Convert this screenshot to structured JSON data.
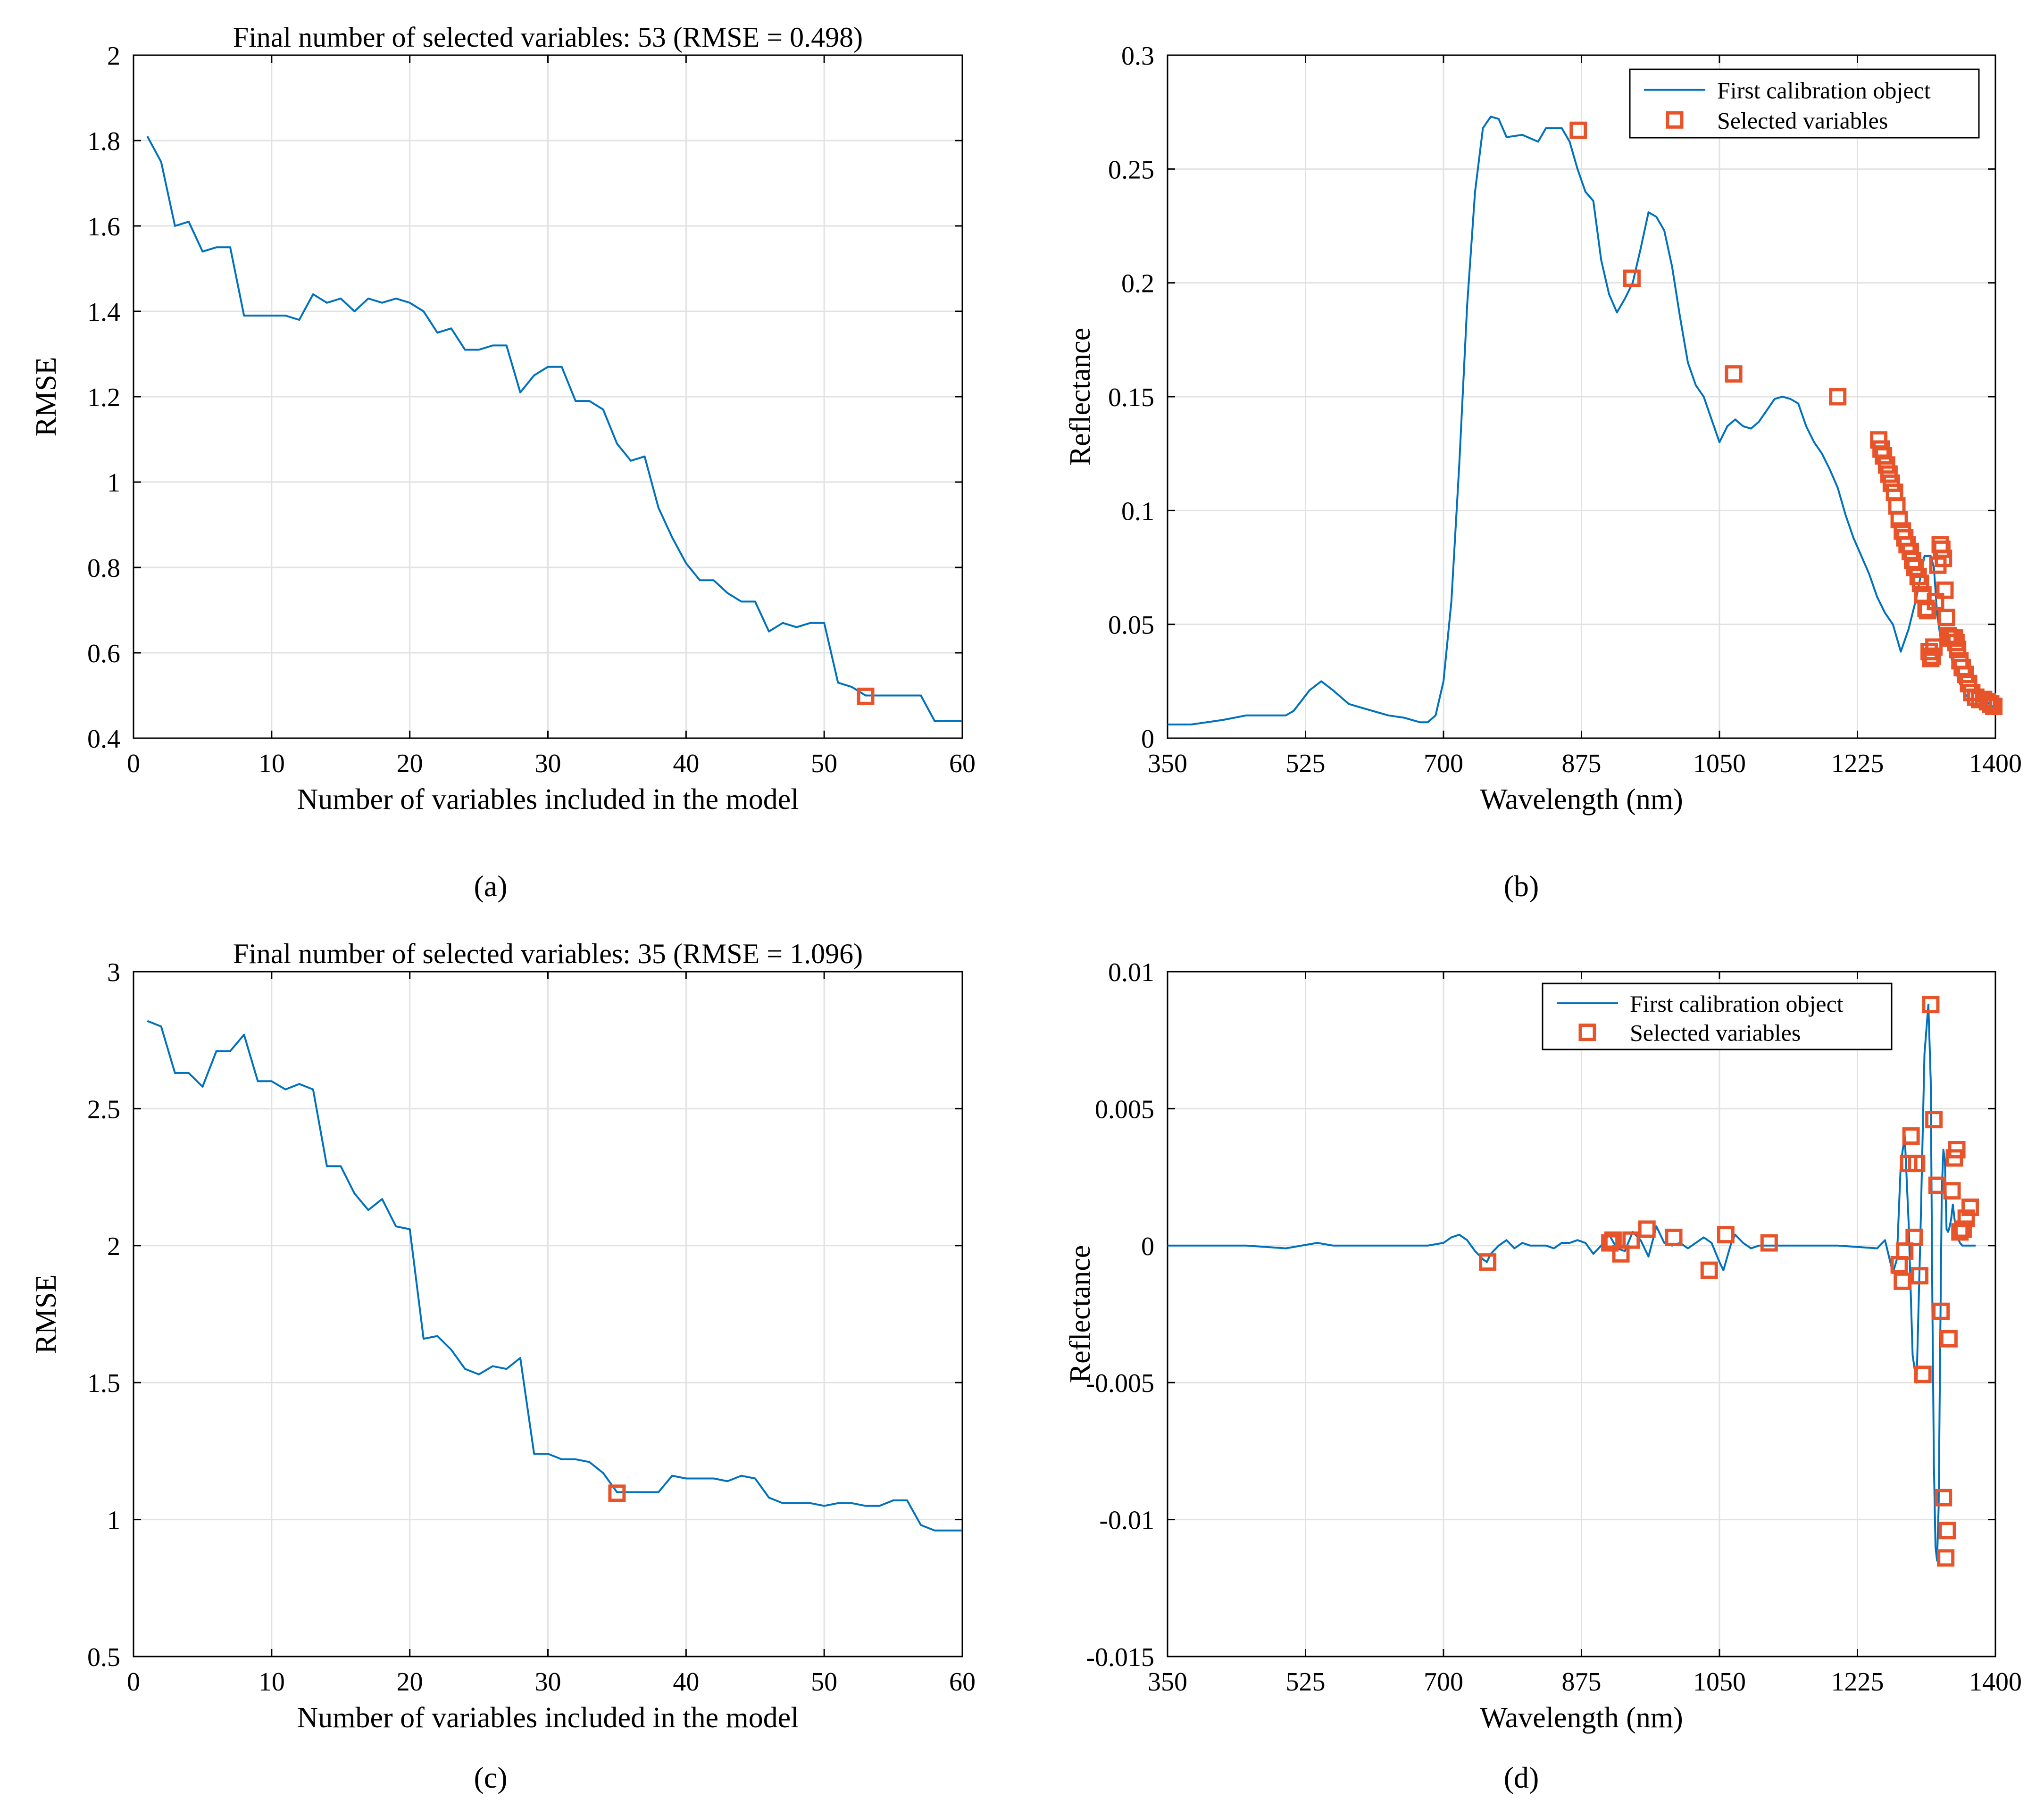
{
  "figure": {
    "panel_labels": [
      "(a)",
      "(b)",
      "(c)",
      "(d)"
    ]
  },
  "colors": {
    "line": "#0072BD",
    "marker": "#E8542A",
    "grid": "#e2e2e2",
    "axis": "#000000"
  },
  "chart_data": [
    {
      "id": "a",
      "type": "line",
      "title": "Final number of selected variables: 53  (RMSE = 0.498)",
      "xlabel": "Number of variables included in the model",
      "ylabel": "RMSE",
      "xlim": [
        0,
        60
      ],
      "ylim": [
        0.4,
        2
      ],
      "xticks": [
        0,
        10,
        20,
        30,
        40,
        50,
        60
      ],
      "xtick_labels": [
        "0",
        "10",
        "20",
        "30",
        "40",
        "50",
        "60"
      ],
      "yticks": [
        0.4,
        0.6,
        0.8,
        1,
        1.2,
        1.4,
        1.6,
        1.8,
        2
      ],
      "ytick_labels": [
        "0.4",
        "0.6",
        "0.8",
        "1",
        "1.2",
        "1.4",
        "1.6",
        "1.8",
        "2"
      ],
      "grid": true,
      "series": [
        {
          "name": "RMSE",
          "x": [
            1,
            2,
            3,
            4,
            5,
            6,
            7,
            8,
            9,
            10,
            11,
            12,
            13,
            14,
            15,
            16,
            17,
            18,
            19,
            20,
            21,
            22,
            23,
            24,
            25,
            26,
            27,
            28,
            29,
            30,
            31,
            32,
            33,
            34,
            35,
            36,
            37,
            38,
            39,
            40,
            41,
            42,
            43,
            44,
            45,
            46,
            47,
            48,
            49,
            50,
            51,
            52,
            53,
            54,
            55,
            56,
            57,
            58,
            59,
            60
          ],
          "y": [
            1.81,
            1.75,
            1.6,
            1.61,
            1.54,
            1.55,
            1.55,
            1.39,
            1.39,
            1.39,
            1.39,
            1.38,
            1.44,
            1.42,
            1.43,
            1.4,
            1.43,
            1.42,
            1.43,
            1.42,
            1.4,
            1.35,
            1.36,
            1.31,
            1.31,
            1.32,
            1.32,
            1.21,
            1.25,
            1.27,
            1.27,
            1.19,
            1.19,
            1.17,
            1.09,
            1.05,
            1.06,
            0.94,
            0.87,
            0.81,
            0.77,
            0.77,
            0.74,
            0.72,
            0.72,
            0.65,
            0.67,
            0.66,
            0.67,
            0.67,
            0.53,
            0.52,
            0.5,
            0.5,
            0.5,
            0.5,
            0.5,
            0.44,
            0.44,
            0.44
          ]
        }
      ],
      "markers": {
        "x": [
          53
        ],
        "y": [
          0.498
        ]
      }
    },
    {
      "id": "b",
      "type": "line",
      "title": "",
      "xlabel": "Wavelength (nm)",
      "ylabel": "Reflectance",
      "xlim": [
        350,
        1400
      ],
      "ylim": [
        0,
        0.3
      ],
      "xticks": [
        350,
        525,
        700,
        875,
        1050,
        1225,
        1400
      ],
      "xtick_labels": [
        "350",
        "525",
        "700",
        "875",
        "1050",
        "1225",
        "1400"
      ],
      "yticks": [
        0,
        0.05,
        0.1,
        0.15,
        0.2,
        0.25,
        0.3
      ],
      "ytick_labels": [
        "0",
        "0.05",
        "0.1",
        "0.15",
        "0.2",
        "0.25",
        "0.3"
      ],
      "grid": true,
      "legend": {
        "position": "top-right",
        "entries": [
          "First calibration object",
          "Selected variables"
        ]
      },
      "series": [
        {
          "name": "First calibration object",
          "x": [
            350,
            380,
            420,
            450,
            480,
            500,
            510,
            530,
            545,
            560,
            580,
            600,
            630,
            650,
            670,
            680,
            690,
            700,
            710,
            720,
            730,
            740,
            750,
            760,
            770,
            780,
            800,
            820,
            830,
            840,
            850,
            860,
            870,
            880,
            890,
            900,
            910,
            920,
            930,
            940,
            950,
            960,
            970,
            980,
            990,
            1000,
            1010,
            1020,
            1030,
            1040,
            1050,
            1060,
            1070,
            1080,
            1090,
            1100,
            1110,
            1120,
            1130,
            1140,
            1150,
            1160,
            1170,
            1180,
            1190,
            1200,
            1210,
            1220,
            1230,
            1240,
            1250,
            1260,
            1270,
            1280,
            1290,
            1300,
            1310,
            1318,
            1322,
            1326,
            1330,
            1334,
            1338,
            1342,
            1346,
            1350,
            1355,
            1360,
            1365,
            1370,
            1375,
            1380,
            1385,
            1390,
            1395,
            1398
          ],
          "y": [
            0.006,
            0.006,
            0.008,
            0.01,
            0.01,
            0.01,
            0.012,
            0.021,
            0.025,
            0.021,
            0.015,
            0.013,
            0.01,
            0.009,
            0.007,
            0.007,
            0.01,
            0.025,
            0.06,
            0.12,
            0.19,
            0.24,
            0.268,
            0.273,
            0.272,
            0.264,
            0.265,
            0.262,
            0.268,
            0.268,
            0.268,
            0.262,
            0.25,
            0.24,
            0.236,
            0.21,
            0.195,
            0.187,
            0.193,
            0.2,
            0.215,
            0.231,
            0.229,
            0.223,
            0.207,
            0.185,
            0.165,
            0.155,
            0.15,
            0.14,
            0.13,
            0.137,
            0.14,
            0.137,
            0.136,
            0.139,
            0.144,
            0.149,
            0.15,
            0.149,
            0.147,
            0.137,
            0.13,
            0.125,
            0.118,
            0.11,
            0.098,
            0.088,
            0.08,
            0.072,
            0.062,
            0.055,
            0.05,
            0.038,
            0.048,
            0.062,
            0.08,
            0.08,
            0.075,
            0.055,
            0.045,
            0.044,
            0.043,
            0.038,
            0.033,
            0.029,
            0.024,
            0.02,
            0.018,
            0.017,
            0.017,
            0.016,
            0.016,
            0.016,
            0.014,
            0.014
          ]
        }
      ],
      "markers": {
        "x": [
          871,
          939,
          1068,
          1200,
          1252,
          1255,
          1258,
          1262,
          1265,
          1268,
          1272,
          1275,
          1278,
          1282,
          1285,
          1288,
          1292,
          1295,
          1298,
          1302,
          1305,
          1308,
          1312,
          1314,
          1316,
          1318,
          1320,
          1322,
          1324,
          1327,
          1330,
          1332,
          1334,
          1336,
          1338,
          1340,
          1342,
          1345,
          1348,
          1350,
          1352,
          1355,
          1358,
          1362,
          1366,
          1370,
          1375,
          1380,
          1385,
          1390,
          1394,
          1398
        ],
        "y": [
          0.267,
          0.202,
          0.16,
          0.15,
          0.131,
          0.127,
          0.124,
          0.12,
          0.116,
          0.112,
          0.108,
          0.102,
          0.096,
          0.091,
          0.088,
          0.085,
          0.082,
          0.078,
          0.075,
          0.071,
          0.068,
          0.063,
          0.057,
          0.056,
          0.038,
          0.035,
          0.036,
          0.04,
          0.06,
          0.076,
          0.085,
          0.083,
          0.079,
          0.065,
          0.053,
          0.045,
          0.044,
          0.044,
          0.044,
          0.042,
          0.039,
          0.034,
          0.031,
          0.028,
          0.024,
          0.02,
          0.018,
          0.017,
          0.017,
          0.016,
          0.015,
          0.014
        ]
      }
    },
    {
      "id": "c",
      "type": "line",
      "title": "Final number of selected variables: 35  (RMSE = 1.096)",
      "xlabel": "Number of variables included in the model",
      "ylabel": "RMSE",
      "xlim": [
        0,
        60
      ],
      "ylim": [
        0.5,
        3
      ],
      "xticks": [
        0,
        10,
        20,
        30,
        40,
        50,
        60
      ],
      "xtick_labels": [
        "0",
        "10",
        "20",
        "30",
        "40",
        "50",
        "60"
      ],
      "yticks": [
        0.5,
        1,
        1.5,
        2,
        2.5,
        3
      ],
      "ytick_labels": [
        "0.5",
        "1",
        "1.5",
        "2",
        "2.5",
        "3"
      ],
      "grid": true,
      "series": [
        {
          "name": "RMSE",
          "x": [
            1,
            2,
            3,
            4,
            5,
            6,
            7,
            8,
            9,
            10,
            11,
            12,
            13,
            14,
            15,
            16,
            17,
            18,
            19,
            20,
            21,
            22,
            23,
            24,
            25,
            26,
            27,
            28,
            29,
            30,
            31,
            32,
            33,
            34,
            35,
            36,
            37,
            38,
            39,
            40,
            41,
            42,
            43,
            44,
            45,
            46,
            47,
            48,
            49,
            50,
            51,
            52,
            53,
            54,
            55,
            56,
            57,
            58,
            59,
            60
          ],
          "y": [
            2.82,
            2.8,
            2.63,
            2.63,
            2.58,
            2.71,
            2.71,
            2.77,
            2.6,
            2.6,
            2.57,
            2.59,
            2.57,
            2.29,
            2.29,
            2.19,
            2.13,
            2.17,
            2.07,
            2.06,
            1.66,
            1.67,
            1.62,
            1.55,
            1.53,
            1.56,
            1.55,
            1.59,
            1.24,
            1.24,
            1.22,
            1.22,
            1.21,
            1.17,
            1.1,
            1.1,
            1.1,
            1.1,
            1.16,
            1.15,
            1.15,
            1.15,
            1.14,
            1.16,
            1.15,
            1.08,
            1.06,
            1.06,
            1.06,
            1.05,
            1.06,
            1.06,
            1.05,
            1.05,
            1.07,
            1.07,
            0.98,
            0.96,
            0.96,
            0.96
          ]
        }
      ],
      "markers": {
        "x": [
          35
        ],
        "y": [
          1.096
        ]
      }
    },
    {
      "id": "d",
      "type": "line",
      "title": "",
      "xlabel": "Wavelength (nm)",
      "ylabel": "Reflectance",
      "xlim": [
        350,
        1400
      ],
      "ylim": [
        -0.015,
        0.01
      ],
      "xticks": [
        350,
        525,
        700,
        875,
        1050,
        1225,
        1400
      ],
      "xtick_labels": [
        "350",
        "525",
        "700",
        "875",
        "1050",
        "1225",
        "1400"
      ],
      "yticks": [
        -0.015,
        -0.01,
        -0.005,
        0,
        0.005,
        0.01
      ],
      "ytick_labels": [
        "-0.015",
        "-0.01",
        "-0.005",
        "0",
        "0.005",
        "0.01"
      ],
      "grid": true,
      "legend": {
        "position": "top-right",
        "entries": [
          "First calibration object",
          "Selected variables"
        ]
      },
      "series": [
        {
          "name": "First calibration object",
          "x": [
            350,
            450,
            500,
            520,
            540,
            560,
            600,
            650,
            680,
            700,
            710,
            720,
            730,
            740,
            750,
            755,
            760,
            770,
            780,
            790,
            800,
            810,
            820,
            830,
            840,
            850,
            860,
            870,
            880,
            890,
            900,
            910,
            920,
            930,
            940,
            950,
            960,
            970,
            980,
            990,
            1000,
            1010,
            1020,
            1030,
            1040,
            1050,
            1055,
            1060,
            1065,
            1070,
            1080,
            1090,
            1100,
            1110,
            1120,
            1130,
            1140,
            1150,
            1200,
            1250,
            1260,
            1270,
            1275,
            1280,
            1285,
            1290,
            1295,
            1300,
            1305,
            1310,
            1315,
            1318,
            1320,
            1322,
            1324,
            1326,
            1328,
            1330,
            1332,
            1334,
            1336,
            1338,
            1340,
            1342,
            1344,
            1346,
            1348,
            1350,
            1352,
            1355,
            1358,
            1362,
            1366,
            1370,
            1375
          ],
          "y": [
            0,
            0,
            -0.0001,
            0,
            0.0001,
            0,
            0,
            0,
            0,
            0.0001,
            0.0003,
            0.0004,
            0.0002,
            -0.0002,
            -0.0005,
            -0.0006,
            -0.0003,
            0,
            0.0002,
            -0.0001,
            0.0001,
            0,
            0,
            0,
            -0.0001,
            0.0001,
            0.0001,
            0.0002,
            0.0001,
            -0.0003,
            0,
            0.0004,
            -0.0001,
            -0.0002,
            0.0005,
            0.0002,
            -0.0004,
            0.0007,
            0.0001,
            0,
            0.0001,
            -0.0001,
            0.0001,
            0.0003,
            0.0001,
            -0.0006,
            -0.0009,
            -0.0004,
            0.0001,
            0.0004,
            0.0001,
            -0.0001,
            0,
            0,
            0,
            0,
            0,
            0,
            0,
            -0.0001,
            0.0002,
            -0.001,
            -0.0005,
            0.003,
            0.004,
            0.0008,
            -0.004,
            -0.005,
            0.0005,
            0.007,
            0.0088,
            0.006,
            -0.002,
            -0.008,
            -0.011,
            -0.0115,
            -0.0095,
            -0.0035,
            0.002,
            0.0035,
            0.0031,
            0.0006,
            0.0005,
            0.0007,
            0.001,
            0.0015,
            0.001,
            0.0006,
            0.0003,
            0.0001,
            0,
            0,
            0,
            0,
            0
          ]
        }
      ],
      "markers": {
        "x": [
          756,
          911,
          915,
          925,
          938,
          958,
          992,
          1037,
          1058,
          1113,
          1278,
          1282,
          1285,
          1290,
          1293,
          1297,
          1300,
          1304,
          1308,
          1318,
          1322,
          1326,
          1331,
          1334,
          1337,
          1339,
          1341,
          1345,
          1348,
          1351,
          1355,
          1359,
          1363,
          1368
        ],
        "y": [
          -0.0006,
          0.0001,
          0.0002,
          -0.0003,
          0.0002,
          0.0006,
          0.0003,
          -0.0009,
          0.0004,
          0.0001,
          -0.0007,
          -0.0013,
          -0.0002,
          0.003,
          0.004,
          0.0003,
          0.003,
          -0.0011,
          -0.0047,
          0.0088,
          0.0046,
          0.0022,
          -0.0024,
          -0.0092,
          -0.0114,
          -0.0104,
          -0.0034,
          0.002,
          0.0032,
          0.0035,
          0.0005,
          0.0006,
          0.001,
          0.0014
        ]
      }
    }
  ]
}
